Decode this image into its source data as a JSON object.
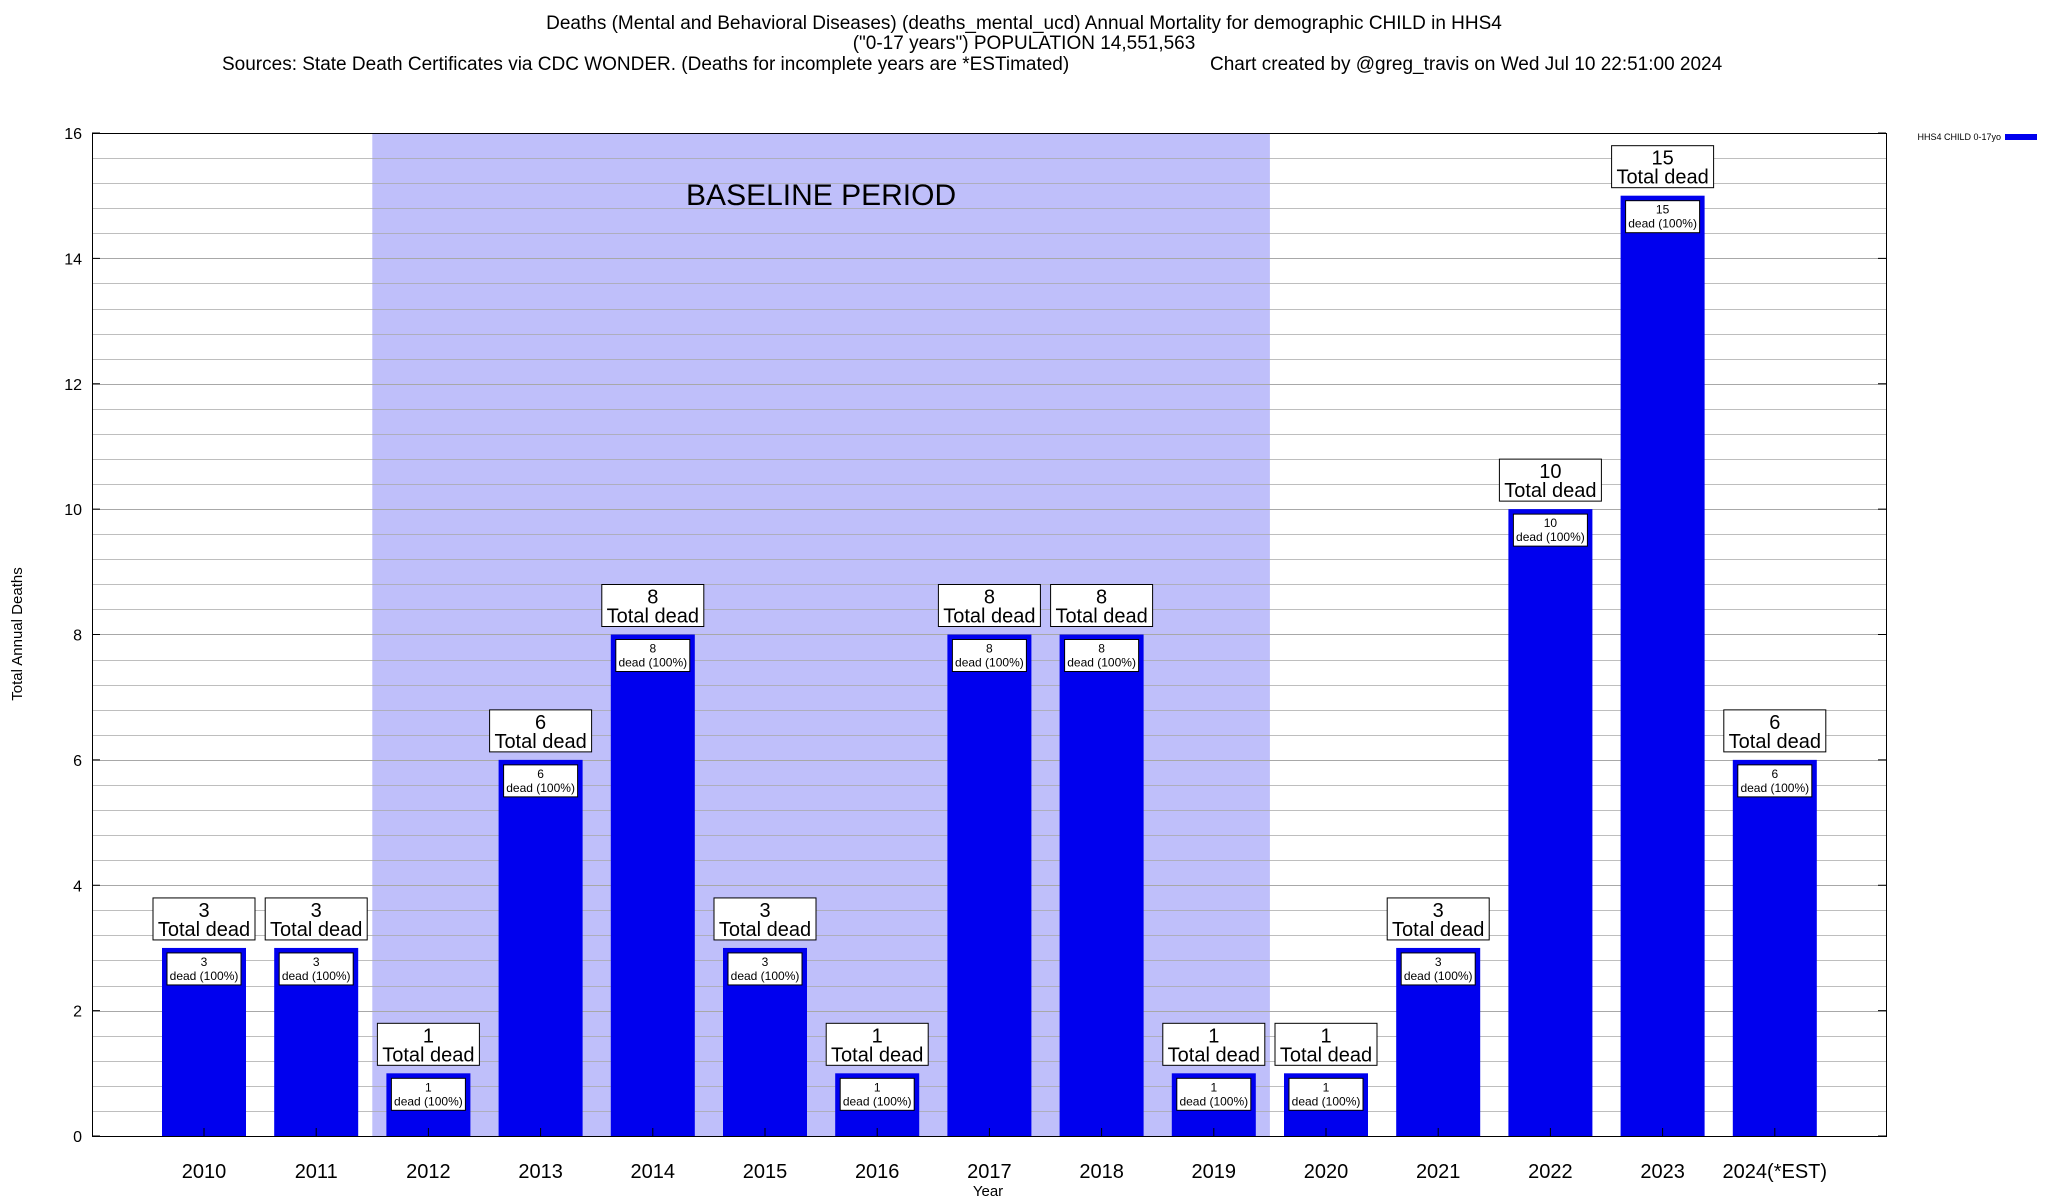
{
  "title": {
    "line1": "Deaths (Mental and Behavioral Diseases) (deaths_mental_ucd) Annual Mortality for demographic CHILD in HHS4",
    "line2": "(\"0-17 years\") POPULATION 14,551,563",
    "sources": "Sources: State Death Certificates via CDC WONDER. (Deaths for incomplete years are *ESTimated)",
    "credit": "Chart created by @greg_travis on Wed Jul 10 22:51:00 2024"
  },
  "colors": {
    "bar": "#0000ee",
    "baseline_shade": "#bfbffa",
    "grid": "#a8a8a8"
  },
  "chart_data": {
    "type": "bar",
    "title": "Deaths (Mental and Behavioral Diseases) (deaths_mental_ucd) Annual Mortality for demographic CHILD in HHS4",
    "xlabel": "Year",
    "ylabel": "Total Annual Deaths",
    "ylim": [
      0,
      16
    ],
    "yticks": [
      0,
      2,
      4,
      6,
      8,
      10,
      12,
      14,
      16
    ],
    "grid": true,
    "legend": {
      "position": "top-right",
      "label": "HHS4 CHILD 0-17yo"
    },
    "categories": [
      "2010",
      "2011",
      "2012",
      "2013",
      "2014",
      "2015",
      "2016",
      "2017",
      "2018",
      "2019",
      "2020",
      "2021",
      "2022",
      "2023",
      "2024(*EST)"
    ],
    "series": [
      {
        "name": "HHS4 CHILD 0-17yo",
        "values": [
          3,
          3,
          1,
          6,
          8,
          3,
          1,
          8,
          8,
          1,
          1,
          3,
          10,
          15,
          6
        ]
      }
    ],
    "total_label": "Total dead",
    "inner_label": "dead (100%)",
    "baseline": {
      "label": "BASELINE PERIOD",
      "from": "2012",
      "to": "2019"
    }
  }
}
